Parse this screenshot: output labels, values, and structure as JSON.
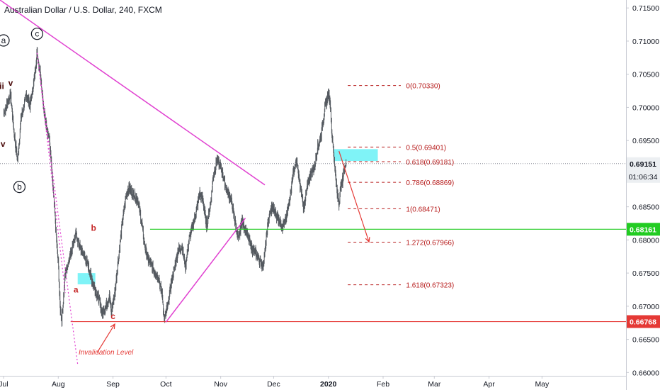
{
  "header": {
    "title": "Australian Dollar / U.S. Dollar, 240, FXCM"
  },
  "chart_data": {
    "type": "candlestick",
    "symbol": "AUDUSD",
    "timeframe": "240",
    "source": "FXCM",
    "ylim": [
      0.6595,
      0.7162
    ],
    "y_ticks": [
      "0.71500",
      "0.71000",
      "0.70500",
      "0.70000",
      "0.69500",
      "0.69000",
      "0.68500",
      "0.68000",
      "0.67500",
      "0.67000",
      "0.66500",
      "0.66000"
    ],
    "x_ticks": [
      "Jul",
      "Aug",
      "Sep",
      "Oct",
      "Nov",
      "Dec",
      "2020",
      "Feb",
      "Mar",
      "Apr",
      "May"
    ],
    "x_tick_days": [
      0,
      31,
      62,
      92,
      123,
      153,
      184,
      215,
      244,
      275,
      305
    ],
    "price_path": [
      [
        0,
        0.699
      ],
      [
        4,
        0.702
      ],
      [
        6,
        0.696
      ],
      [
        8,
        0.692
      ],
      [
        10,
        0.6985
      ],
      [
        13,
        0.702
      ],
      [
        15,
        0.7003
      ],
      [
        17,
        0.7035
      ],
      [
        19,
        0.7082
      ],
      [
        21,
        0.705
      ],
      [
        23,
        0.699
      ],
      [
        26,
        0.695
      ],
      [
        28,
        0.688
      ],
      [
        30,
        0.68
      ],
      [
        31,
        0.6765
      ],
      [
        32,
        0.67
      ],
      [
        33,
        0.668
      ],
      [
        35,
        0.675
      ],
      [
        38,
        0.678
      ],
      [
        41,
        0.681
      ],
      [
        43,
        0.679
      ],
      [
        46,
        0.6775
      ],
      [
        48,
        0.676
      ],
      [
        50,
        0.674
      ],
      [
        52,
        0.6725
      ],
      [
        54,
        0.671
      ],
      [
        56,
        0.669
      ],
      [
        58,
        0.67
      ],
      [
        60,
        0.6715
      ],
      [
        61,
        0.669
      ],
      [
        63,
        0.672
      ],
      [
        65,
        0.677
      ],
      [
        67,
        0.682
      ],
      [
        69,
        0.686
      ],
      [
        71,
        0.688
      ],
      [
        73,
        0.687
      ],
      [
        76,
        0.686
      ],
      [
        78,
        0.683
      ],
      [
        80,
        0.679
      ],
      [
        82,
        0.677
      ],
      [
        84,
        0.676
      ],
      [
        86,
        0.675
      ],
      [
        88,
        0.674
      ],
      [
        90,
        0.6715
      ],
      [
        91,
        0.668
      ],
      [
        93,
        0.67
      ],
      [
        95,
        0.6735
      ],
      [
        97,
        0.676
      ],
      [
        99,
        0.6785
      ],
      [
        101,
        0.679
      ],
      [
        103,
        0.676
      ],
      [
        105,
        0.68
      ],
      [
        107,
        0.682
      ],
      [
        109,
        0.684
      ],
      [
        111,
        0.687
      ],
      [
        113,
        0.686
      ],
      [
        115,
        0.682
      ],
      [
        117,
        0.685
      ],
      [
        119,
        0.69
      ],
      [
        121,
        0.692
      ],
      [
        123,
        0.691
      ],
      [
        125,
        0.689
      ],
      [
        127,
        0.687
      ],
      [
        129,
        0.686
      ],
      [
        131,
        0.683
      ],
      [
        133,
        0.68
      ],
      [
        135,
        0.683
      ],
      [
        137,
        0.6815
      ],
      [
        139,
        0.68
      ],
      [
        141,
        0.6785
      ],
      [
        143,
        0.678
      ],
      [
        145,
        0.677
      ],
      [
        147,
        0.676
      ],
      [
        148,
        0.678
      ],
      [
        150,
        0.683
      ],
      [
        152,
        0.685
      ],
      [
        154,
        0.684
      ],
      [
        156,
        0.683
      ],
      [
        158,
        0.682
      ],
      [
        160,
        0.683
      ],
      [
        162,
        0.686
      ],
      [
        164,
        0.69
      ],
      [
        166,
        0.692
      ],
      [
        168,
        0.688
      ],
      [
        170,
        0.685
      ],
      [
        172,
        0.688
      ],
      [
        174,
        0.69
      ],
      [
        176,
        0.691
      ],
      [
        178,
        0.694
      ],
      [
        180,
        0.696
      ],
      [
        182,
        0.7
      ],
      [
        183,
        0.701
      ],
      [
        184,
        0.702
      ],
      [
        185,
        0.701
      ],
      [
        186,
        0.696
      ],
      [
        187,
        0.693
      ],
      [
        188,
        0.69
      ],
      [
        189,
        0.687
      ],
      [
        190,
        0.6855
      ],
      [
        191,
        0.688
      ],
      [
        192,
        0.689
      ],
      [
        193,
        0.691
      ],
      [
        194,
        0.6915
      ]
    ],
    "current_price": {
      "value": 0.69151,
      "label": "0.69151",
      "countdown": "01:06:34"
    },
    "horizontal_lines": [
      {
        "value": 0.68161,
        "label": "0.68161",
        "color": "#22cc22"
      },
      {
        "value": 0.66768,
        "label": "0.66768",
        "color": "#e53935"
      }
    ],
    "fib_levels": [
      {
        "ratio": "0",
        "value": 0.7033,
        "label": "0(0.70330)"
      },
      {
        "ratio": "0.5",
        "value": 0.69401,
        "label": "0.5(0.69401)"
      },
      {
        "ratio": "0.618",
        "value": 0.69181,
        "label": "0.618(0.69181)"
      },
      {
        "ratio": "0.786",
        "value": 0.68869,
        "label": "0.786(0.68869)"
      },
      {
        "ratio": "1",
        "value": 0.68471,
        "label": "1(0.68471)"
      },
      {
        "ratio": "1.272",
        "value": 0.67966,
        "label": "1.272(0.67966)"
      },
      {
        "ratio": "1.618",
        "value": 0.67323,
        "label": "1.618(0.67323)"
      }
    ],
    "fib_color": "#b71c1c",
    "trendlines": [
      {
        "from": [
          -2,
          0.7162
        ],
        "to": [
          148,
          0.6883
        ],
        "color": "#e040d0"
      },
      {
        "from": [
          92,
          0.6676
        ],
        "to": [
          137,
          0.6833
        ],
        "color": "#e040d0"
      }
    ],
    "dotted_lines": [
      {
        "from": [
          19,
          0.7082
        ],
        "to": [
          42,
          0.6612
        ],
        "color": "#e040d0"
      },
      {
        "from": [
          19,
          0.7082
        ],
        "to": [
          35,
          0.672
        ],
        "color": "#e040d0"
      }
    ],
    "zones": [
      {
        "from": [
          42,
          0.675
        ],
        "to": [
          52,
          0.6733
        ],
        "color": "#7ff3f7"
      },
      {
        "from": [
          187,
          0.6937
        ],
        "to": [
          212,
          0.6919
        ],
        "color": "#7ff3f7"
      }
    ],
    "projection_arrow": {
      "from": [
        190,
        0.6934
      ],
      "to": [
        207,
        0.6797
      ],
      "color": "#e53935"
    },
    "invalidation_arrow": {
      "from": [
        53,
        0.663
      ],
      "to": [
        63,
        0.6673
      ],
      "color": "#e53935"
    },
    "wave_labels": [
      {
        "text": "a",
        "day": 0,
        "value": 0.7101,
        "circled": true,
        "color": "#131722"
      },
      {
        "text": "c",
        "day": 19,
        "value": 0.7111,
        "circled": true,
        "color": "#131722"
      },
      {
        "text": "b",
        "day": 9,
        "value": 0.688,
        "circled": true,
        "color": "#131722"
      },
      {
        "text": "ii",
        "day": -1,
        "value": 0.7032,
        "circled": false,
        "color": "#4a0a0a"
      },
      {
        "text": "v",
        "day": 4,
        "value": 0.7037,
        "circled": false,
        "color": "#4a0a0a"
      },
      {
        "text": "iv",
        "day": -1,
        "value": 0.6945,
        "circled": false,
        "color": "#4a0a0a"
      },
      {
        "text": "b",
        "day": 51,
        "value": 0.6818,
        "circled": false,
        "color": "#c62828"
      },
      {
        "text": "a",
        "day": 41,
        "value": 0.6725,
        "circled": false,
        "color": "#c62828"
      },
      {
        "text": "c",
        "day": 62,
        "value": 0.6685,
        "circled": false,
        "color": "#c62828"
      }
    ],
    "annotation": {
      "text": "Invalidation Level",
      "day": 58,
      "value": 0.6627,
      "color": "#e53935"
    },
    "axis_label_color": "#131722",
    "grid": false
  }
}
